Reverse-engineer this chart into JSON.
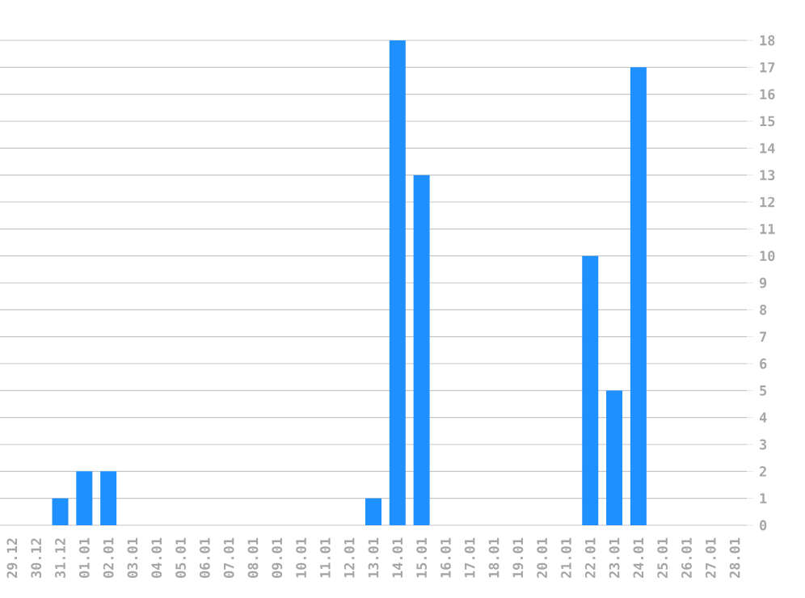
{
  "chart_data": {
    "type": "bar",
    "categories": [
      "29.12",
      "30.12",
      "31.12",
      "01.01",
      "02.01",
      "03.01",
      "04.01",
      "05.01",
      "06.01",
      "07.01",
      "08.01",
      "09.01",
      "10.01",
      "11.01",
      "12.01",
      "13.01",
      "14.01",
      "15.01",
      "16.01",
      "17.01",
      "18.01",
      "19.01",
      "20.01",
      "21.01",
      "22.01",
      "23.01",
      "24.01",
      "25.01",
      "26.01",
      "27.01",
      "28.01"
    ],
    "values": [
      0,
      0,
      1,
      2,
      2,
      0,
      0,
      0,
      0,
      0,
      0,
      0,
      0,
      0,
      0,
      1,
      18,
      13,
      0,
      0,
      0,
      0,
      0,
      0,
      10,
      5,
      17,
      0,
      0,
      0,
      0
    ],
    "color": "#1e90ff",
    "ylim": [
      0,
      18
    ],
    "yticks": [
      0,
      1,
      2,
      3,
      4,
      5,
      6,
      7,
      8,
      9,
      10,
      11,
      12,
      13,
      14,
      15,
      16,
      17,
      18
    ],
    "grid": "y"
  }
}
